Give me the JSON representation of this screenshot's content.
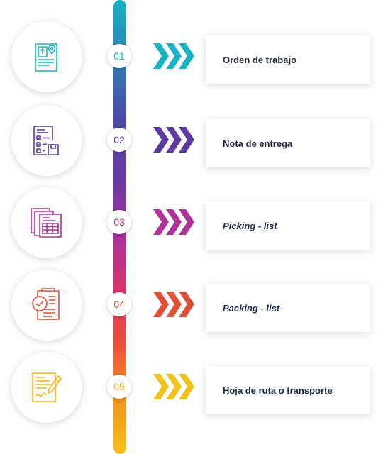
{
  "steps": [
    {
      "number": "01",
      "label": "Orden de trabajo",
      "color": "#19b4c4",
      "icon": "work-order-document-icon"
    },
    {
      "number": "02",
      "label": "Nota de entrega",
      "color": "#5d3a9e",
      "icon": "delivery-note-checklist-icon"
    },
    {
      "number": "03",
      "label": "Picking - list",
      "color": "#b0339a",
      "icon": "picking-list-documents-icon"
    },
    {
      "number": "04",
      "label": "Packing - list",
      "color": "#e24f38",
      "icon": "packing-list-check-icon"
    },
    {
      "number": "05",
      "label": "Hoja de ruta o transporte",
      "color": "#f2c21b",
      "icon": "route-sheet-signature-icon"
    }
  ]
}
